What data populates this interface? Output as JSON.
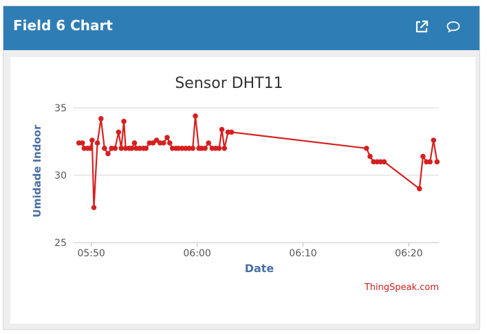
{
  "header": {
    "title": "Field 6 Chart",
    "popout_icon": "external-link-icon",
    "comment_icon": "comment-icon"
  },
  "chart_data": {
    "type": "line",
    "title": "Sensor DHT11",
    "xlabel": "Date",
    "ylabel": "Umidade Indoor",
    "xlim": [
      "05:48:20",
      "06:22:50"
    ],
    "ylim": [
      25,
      35
    ],
    "yticks": [
      25,
      30,
      35
    ],
    "xticks": [
      "05:50",
      "06:00",
      "06:10",
      "06:20"
    ],
    "grid": true,
    "credit": "ThingSpeak.com",
    "series": [
      {
        "color": "#d62020",
        "x": [
          "05:48:50",
          "05:49:10",
          "05:49:20",
          "05:49:40",
          "05:49:55",
          "05:50:05",
          "05:50:15",
          "05:50:35",
          "05:50:55",
          "05:51:15",
          "05:51:35",
          "05:51:55",
          "05:52:15",
          "05:52:35",
          "05:52:50",
          "05:53:05",
          "05:53:15",
          "05:53:35",
          "05:53:50",
          "05:54:05",
          "05:54:15",
          "05:54:35",
          "05:54:55",
          "05:55:10",
          "05:55:30",
          "05:55:50",
          "05:56:10",
          "05:56:30",
          "05:56:50",
          "05:57:10",
          "05:57:25",
          "05:57:40",
          "05:58:00",
          "05:58:15",
          "05:58:35",
          "05:58:55",
          "05:59:15",
          "05:59:35",
          "05:59:50",
          "06:00:10",
          "06:00:25",
          "06:00:45",
          "06:01:05",
          "06:01:25",
          "06:01:45",
          "06:02:05",
          "06:02:20",
          "06:02:35",
          "06:02:55",
          "06:03:15",
          "06:16:00",
          "06:16:20",
          "06:16:40",
          "06:17:00",
          "06:17:20",
          "06:17:40",
          "06:21:00",
          "06:21:20",
          "06:21:40",
          "06:22:00",
          "06:22:20",
          "06:22:40"
        ],
        "y": [
          32.4,
          32.4,
          32.0,
          32.0,
          32.0,
          32.6,
          27.6,
          32.4,
          34.2,
          32.0,
          31.6,
          32.0,
          32.0,
          33.2,
          32.0,
          34.0,
          32.0,
          32.0,
          32.0,
          32.4,
          32.0,
          32.0,
          32.0,
          32.0,
          32.4,
          32.4,
          32.6,
          32.4,
          32.4,
          32.8,
          32.4,
          32.0,
          32.0,
          32.0,
          32.0,
          32.0,
          32.0,
          32.0,
          34.4,
          32.0,
          32.0,
          32.0,
          32.4,
          32.0,
          32.0,
          32.0,
          33.4,
          32.0,
          33.2,
          33.2,
          32.0,
          31.4,
          31.0,
          31.0,
          31.0,
          31.0,
          29.0,
          31.4,
          31.0,
          31.0,
          32.6,
          31.0
        ]
      }
    ]
  }
}
